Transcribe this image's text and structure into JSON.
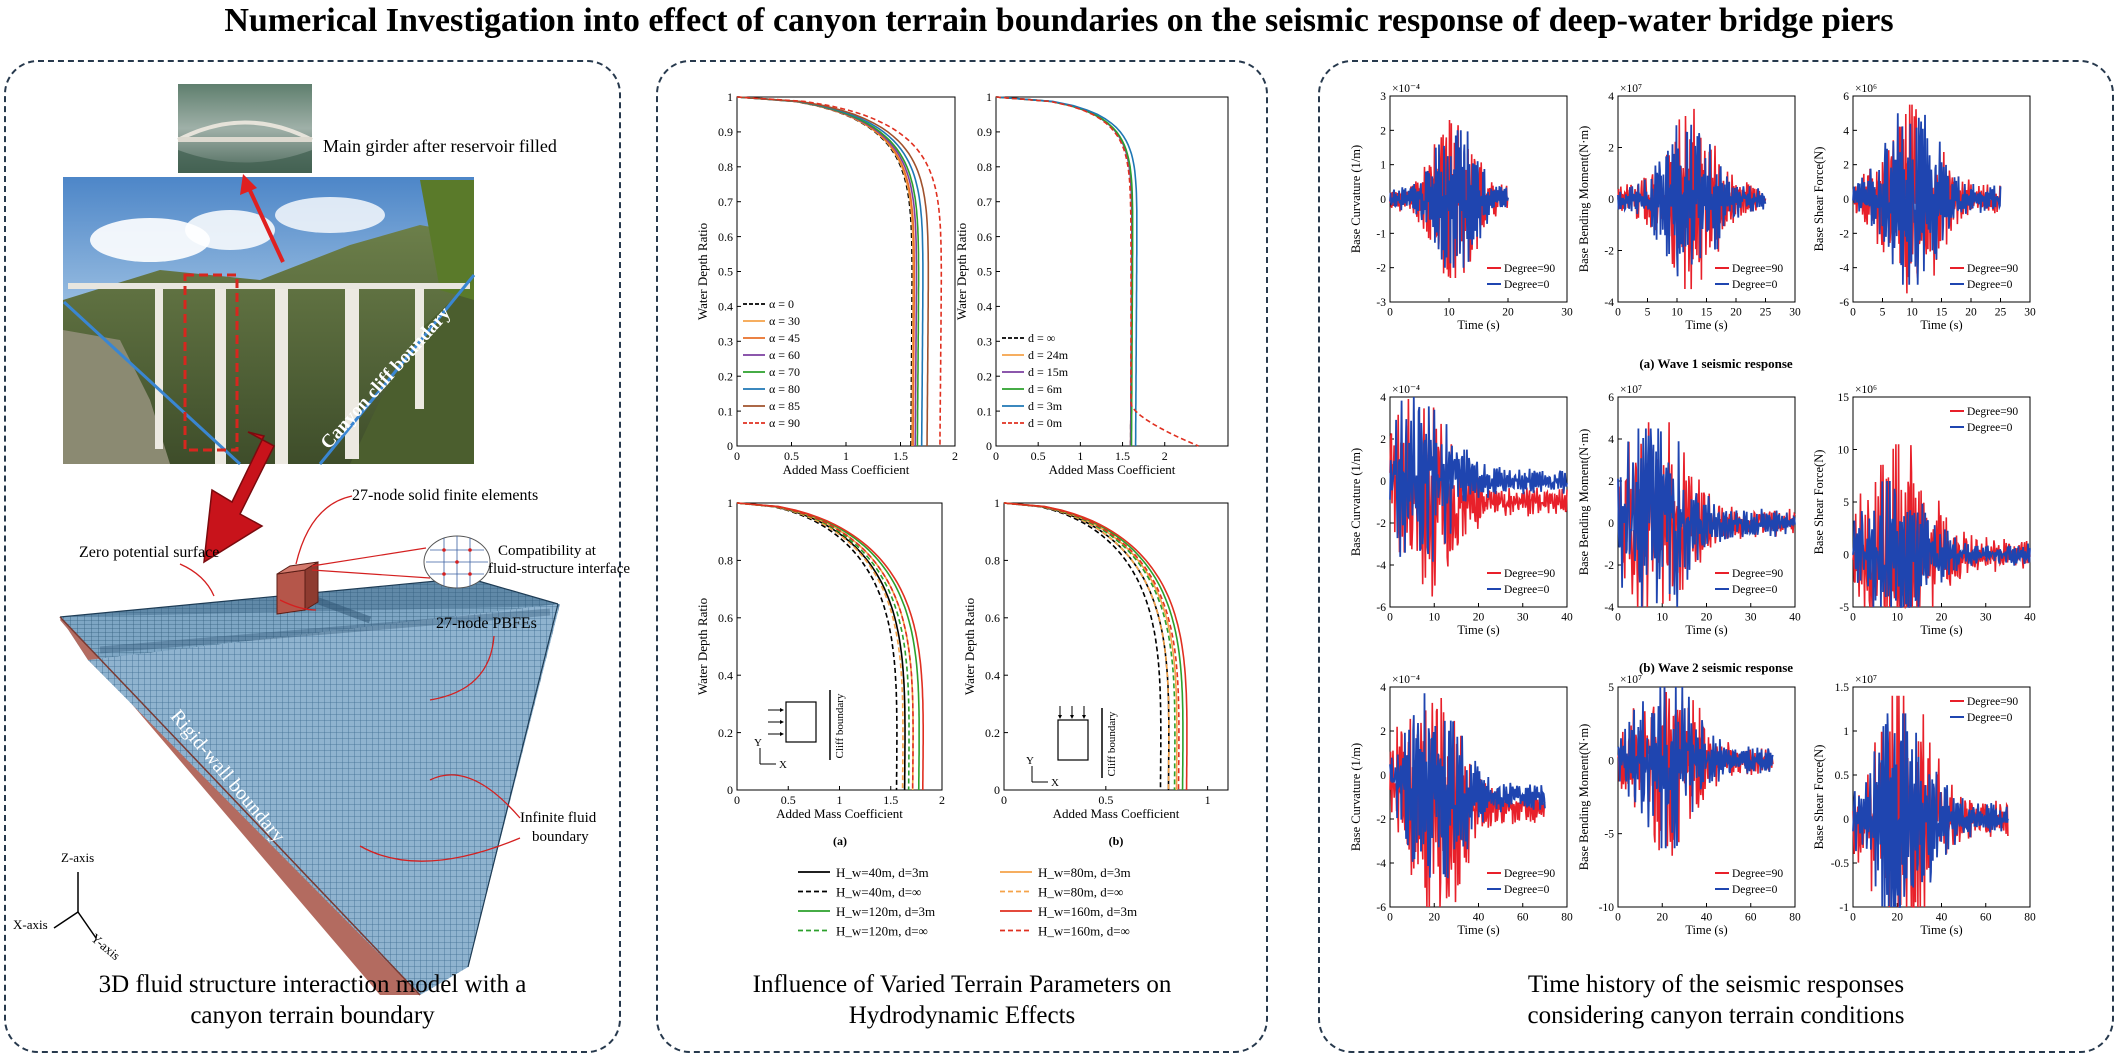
{
  "title": "Numerical Investigation into effect of canyon terrain boundaries on the seismic response of deep-water bridge piers",
  "left_panel": {
    "photo_label": "Main girder after reservoir filled",
    "canyon_label": "Canyon cliff boundary",
    "solid_label": "27-node solid finite elements",
    "compat_label_1": "Compatibility at",
    "compat_label_2": "fluid-structure interface",
    "zero_label": "Zero potential surface",
    "pbfe_label": "27-node PBFEs",
    "rigid_label": "Rigid-wall boundary",
    "infinite_label_1": "Infinite fluid",
    "infinite_label_2": "boundary",
    "z_axis": "Z-axis",
    "x_axis": "X-axis",
    "y_axis": "Y-axis",
    "caption_1": "3D fluid structure interaction model with a",
    "caption_2": "canyon terrain boundary"
  },
  "mid_panel": {
    "caption_1": "Influence of Varied Terrain Parameters on",
    "caption_2": "Hydrodynamic Effects",
    "sub_a": "(a)",
    "sub_b": "(b)",
    "cliff_label": "Cliff boundary",
    "bottom_legend": [
      {
        "label": "H_w=40m, d=3m",
        "color": "#000000",
        "dash": false
      },
      {
        "label": "H_w=80m, d=3m",
        "color": "#f5a34a",
        "dash": false
      },
      {
        "label": "H_w=40m, d=∞",
        "color": "#000000",
        "dash": true
      },
      {
        "label": "H_w=80m, d=∞",
        "color": "#f5a34a",
        "dash": true
      },
      {
        "label": "H_w=120m, d=3m",
        "color": "#2ca02c",
        "dash": false
      },
      {
        "label": "H_w=160m, d=3m",
        "color": "#e03020",
        "dash": false
      },
      {
        "label": "H_w=120m, d=∞",
        "color": "#2ca02c",
        "dash": true
      },
      {
        "label": "H_w=160m, d=∞",
        "color": "#e03020",
        "dash": true
      }
    ]
  },
  "right_panel": {
    "caption_1": "Time history of the seismic responses",
    "caption_2": "considering canyon terrain conditions",
    "wave_labels": [
      "(a) Wave 1 seismic response",
      "(b) Wave 2 seismic response"
    ],
    "legend_90": "Degree=90",
    "legend_0": "Degree=0",
    "color_90": "#e8202a",
    "color_0": "#1f45b0"
  },
  "chart_data": [
    {
      "type": "line",
      "id": "added-mass-alpha",
      "xlabel": "Added Mass Coefficient",
      "ylabel": "Water Depth Ratio",
      "xlim": [
        0,
        2
      ],
      "ylim": [
        0,
        1
      ],
      "xticks": [
        "0",
        "0.5",
        "1",
        "1.5",
        "2"
      ],
      "yticks": [
        "0",
        "0.1",
        "0.2",
        "0.3",
        "0.4",
        "0.5",
        "0.6",
        "0.7",
        "0.8",
        "0.9",
        "1"
      ],
      "legend": "bottom-left",
      "series": [
        {
          "name": "α = 0",
          "color": "#000000",
          "dash": true,
          "asymptote": 1.62
        },
        {
          "name": "α = 30",
          "color": "#f5a34a",
          "dash": false,
          "asymptote": 1.63
        },
        {
          "name": "α = 45",
          "color": "#e8702a",
          "dash": false,
          "asymptote": 1.64
        },
        {
          "name": "α = 60",
          "color": "#7b3fa0",
          "dash": false,
          "asymptote": 1.66
        },
        {
          "name": "α = 70",
          "color": "#2ca02c",
          "dash": false,
          "asymptote": 1.68
        },
        {
          "name": "α = 80",
          "color": "#1f77b4",
          "dash": false,
          "asymptote": 1.72
        },
        {
          "name": "α = 85",
          "color": "#a0522d",
          "dash": false,
          "asymptote": 1.77
        },
        {
          "name": "α = 90",
          "color": "#e03020",
          "dash": true,
          "asymptote": 1.89
        }
      ]
    },
    {
      "type": "line",
      "id": "added-mass-distance",
      "xlabel": "Added Mass Coefficient",
      "ylabel": "Water Depth Ratio",
      "xlim": [
        0,
        2.75
      ],
      "ylim": [
        0,
        1
      ],
      "xticks": [
        "0",
        "0.5",
        "1",
        "1.5",
        "2"
      ],
      "yticks": [
        "0",
        "0.1",
        "0.2",
        "0.3",
        "0.4",
        "0.5",
        "0.6",
        "0.7",
        "0.8",
        "0.9",
        "1"
      ],
      "legend": "bottom-left",
      "series": [
        {
          "name": "d = ∞",
          "color": "#000000",
          "dash": true,
          "asymptote": 1.62
        },
        {
          "name": "d = 24m",
          "color": "#f5a34a",
          "dash": false,
          "asymptote": 1.62
        },
        {
          "name": "d = 15m",
          "color": "#7b3fa0",
          "dash": false,
          "asymptote": 1.62
        },
        {
          "name": "d = 6m",
          "color": "#2ca02c",
          "dash": false,
          "asymptote": 1.63
        },
        {
          "name": "d = 3m",
          "color": "#1f77b4",
          "dash": false,
          "asymptote": 1.68
        },
        {
          "name": "d = 0m",
          "color": "#e03020",
          "dash": true,
          "asymptote": 2.4
        }
      ]
    },
    {
      "type": "line",
      "id": "water-depth-a",
      "xlabel": "Added Mass Coefficient",
      "ylabel": "Water Depth Ratio",
      "xlim": [
        0,
        2
      ],
      "ylim": [
        0,
        1
      ],
      "xticks": [
        "0",
        "0.5",
        "1",
        "1.5",
        "2"
      ],
      "yticks": [
        "0",
        "0.2",
        "0.4",
        "0.6",
        "0.8",
        "1"
      ],
      "series": [
        {
          "name": "H_w=40m, d=3m",
          "color": "#000000",
          "dash": false,
          "asymptote": 1.66
        },
        {
          "name": "H_w=40m, d=∞",
          "color": "#000000",
          "dash": true,
          "asymptote": 1.58
        },
        {
          "name": "H_w=80m, d=3m",
          "color": "#f5a34a",
          "dash": false,
          "asymptote": 1.74
        },
        {
          "name": "H_w=80m, d=∞",
          "color": "#f5a34a",
          "dash": true,
          "asymptote": 1.64
        },
        {
          "name": "H_w=120m, d=3m",
          "color": "#2ca02c",
          "dash": false,
          "asymptote": 1.8
        },
        {
          "name": "H_w=120m, d=∞",
          "color": "#2ca02c",
          "dash": true,
          "asymptote": 1.7
        },
        {
          "name": "H_w=160m, d=3m",
          "color": "#e03020",
          "dash": false,
          "asymptote": 1.84
        },
        {
          "name": "H_w=160m, d=∞",
          "color": "#e03020",
          "dash": true,
          "asymptote": 1.74
        }
      ]
    },
    {
      "type": "line",
      "id": "water-depth-b",
      "xlabel": "Added Mass Coefficient",
      "ylabel": "Water Depth Ratio",
      "xlim": [
        0,
        1.1
      ],
      "ylim": [
        0,
        1
      ],
      "xticks": [
        "0",
        "0.5",
        "1"
      ],
      "yticks": [
        "0",
        "0.2",
        "0.4",
        "0.6",
        "0.8",
        "1"
      ],
      "series": [
        {
          "name": "H_w=40m, d=3m",
          "color": "#000000",
          "dash": false,
          "asymptote": 0.82
        },
        {
          "name": "H_w=40m, d=∞",
          "color": "#000000",
          "dash": true,
          "asymptote": 0.78
        },
        {
          "name": "H_w=80m, d=3m",
          "color": "#f5a34a",
          "dash": false,
          "asymptote": 0.86
        },
        {
          "name": "H_w=80m, d=∞",
          "color": "#f5a34a",
          "dash": true,
          "asymptote": 0.82
        },
        {
          "name": "H_w=120m, d=3m",
          "color": "#2ca02c",
          "dash": false,
          "asymptote": 0.89
        },
        {
          "name": "H_w=120m, d=∞",
          "color": "#2ca02c",
          "dash": true,
          "asymptote": 0.85
        },
        {
          "name": "H_w=160m, d=3m",
          "color": "#e03020",
          "dash": false,
          "asymptote": 0.91
        },
        {
          "name": "H_w=160m, d=∞",
          "color": "#e03020",
          "dash": true,
          "asymptote": 0.87
        }
      ]
    },
    {
      "type": "line",
      "id": "w1-curvature",
      "ylabel": "Base Curvature (1/m)",
      "xlabel": "Time (s)",
      "exponent": "×10⁻⁴",
      "xlim": [
        0,
        30
      ],
      "ylim": [
        -3,
        3
      ],
      "xticks": [
        "0",
        "10",
        "20",
        "30"
      ],
      "yticks": [
        "-3",
        "-2",
        "-1",
        "0",
        "1",
        "2",
        "3"
      ],
      "duration": 20,
      "peak_time": 11,
      "amp90": 2.3,
      "amp0": 2.0,
      "offset90": 0,
      "offset0": 0,
      "legend": "bottom-right"
    },
    {
      "type": "line",
      "id": "w1-moment",
      "ylabel": "Base Bending Moment(N·m)",
      "xlabel": "Time (s)",
      "exponent": "×10⁷",
      "xlim": [
        0,
        30
      ],
      "ylim": [
        -4,
        4
      ],
      "xticks": [
        "0",
        "5",
        "10",
        "15",
        "20",
        "25",
        "30"
      ],
      "yticks": [
        "-4",
        "-2",
        "0",
        "2",
        "4"
      ],
      "duration": 25,
      "peak_time": 12,
      "amp90": 3.5,
      "amp0": 3.0,
      "offset90": 0,
      "offset0": 0,
      "legend": "bottom-right"
    },
    {
      "type": "line",
      "id": "w1-shear",
      "ylabel": "Base Shear Force(N)",
      "xlabel": "Time (s)",
      "exponent": "×10⁶",
      "xlim": [
        0,
        30
      ],
      "ylim": [
        -6,
        6
      ],
      "xticks": [
        "0",
        "5",
        "10",
        "15",
        "20",
        "25",
        "30"
      ],
      "yticks": [
        "-6",
        "-4",
        "-2",
        "0",
        "2",
        "4",
        "6"
      ],
      "duration": 25,
      "peak_time": 10,
      "amp90": 5.5,
      "amp0": 5.0,
      "offset90": 0,
      "offset0": 0,
      "legend": "bottom-right"
    },
    {
      "type": "line",
      "id": "w2-curvature",
      "ylabel": "Base Curvature (1/m)",
      "xlabel": "Time (s)",
      "exponent": "×10⁻⁴",
      "xlim": [
        0,
        40
      ],
      "ylim": [
        -6,
        4
      ],
      "xticks": [
        "0",
        "10",
        "20",
        "30",
        "40"
      ],
      "yticks": [
        "-6",
        "-4",
        "-2",
        "0",
        "2",
        "4"
      ],
      "duration": 40,
      "peak_time": 7,
      "amp90": 4.5,
      "amp0": 4.0,
      "offset90": -1.0,
      "offset0": 0,
      "legend": "bottom-right"
    },
    {
      "type": "line",
      "id": "w2-moment",
      "ylabel": "Base Bending Moment(N·m)",
      "xlabel": "Time (s)",
      "exponent": "×10⁷",
      "xlim": [
        0,
        40
      ],
      "ylim": [
        -4,
        6
      ],
      "xticks": [
        "0",
        "10",
        "20",
        "30",
        "40"
      ],
      "yticks": [
        "-4",
        "-2",
        "0",
        "2",
        "4",
        "6"
      ],
      "duration": 40,
      "peak_time": 8,
      "amp90": 4.8,
      "amp0": 4.5,
      "offset90": 0,
      "offset0": 0,
      "legend": "bottom-right"
    },
    {
      "type": "line",
      "id": "w2-shear",
      "ylabel": "Base Shear Force(N)",
      "xlabel": "Time (s)",
      "exponent": "×10⁶",
      "xlim": [
        0,
        40
      ],
      "ylim": [
        -5,
        15
      ],
      "xticks": [
        "0",
        "10",
        "20",
        "30",
        "40"
      ],
      "yticks": [
        "-5",
        "0",
        "5",
        "10",
        "15"
      ],
      "duration": 40,
      "peak_time": 10,
      "amp90": 10.5,
      "amp0": 7.0,
      "offset90": 0,
      "offset0": 0,
      "legend": "top-right"
    },
    {
      "type": "line",
      "id": "w3-curvature",
      "ylabel": "Base Curvature (1/m)",
      "xlabel": "Time (s)",
      "exponent": "×10⁻⁴",
      "xlim": [
        0,
        80
      ],
      "ylim": [
        -6,
        4
      ],
      "xticks": [
        "0",
        "20",
        "40",
        "60",
        "80"
      ],
      "yticks": [
        "-6",
        "-4",
        "-2",
        "0",
        "2",
        "4"
      ],
      "duration": 70,
      "peak_time": 20,
      "amp90": 5.0,
      "amp0": 4.5,
      "offset90": -1.5,
      "offset0": -1.0,
      "legend": "bottom-right"
    },
    {
      "type": "line",
      "id": "w3-moment",
      "ylabel": "Base Bending Moment(N·m)",
      "xlabel": "Time (s)",
      "exponent": "×10⁷",
      "xlim": [
        0,
        80
      ],
      "ylim": [
        -10,
        5
      ],
      "xticks": [
        "0",
        "20",
        "40",
        "60",
        "80"
      ],
      "yticks": [
        "-10",
        "-5",
        "0",
        "5"
      ],
      "duration": 70,
      "peak_time": 22,
      "amp90": 6.5,
      "amp0": 6.0,
      "offset90": 0,
      "offset0": 0,
      "legend": "bottom-right"
    },
    {
      "type": "line",
      "id": "w3-shear",
      "ylabel": "Base Shear Force(N)",
      "xlabel": "Time (s)",
      "exponent": "×10⁷",
      "xlim": [
        0,
        80
      ],
      "ylim": [
        -1,
        1.5
      ],
      "xticks": [
        "0",
        "20",
        "40",
        "60",
        "80"
      ],
      "yticks": [
        "-1",
        "-0.5",
        "0",
        "0.5",
        "1",
        "1.5"
      ],
      "duration": 70,
      "peak_time": 22,
      "amp90": 1.4,
      "amp0": 1.2,
      "offset90": 0,
      "offset0": 0,
      "legend": "top-right"
    }
  ]
}
